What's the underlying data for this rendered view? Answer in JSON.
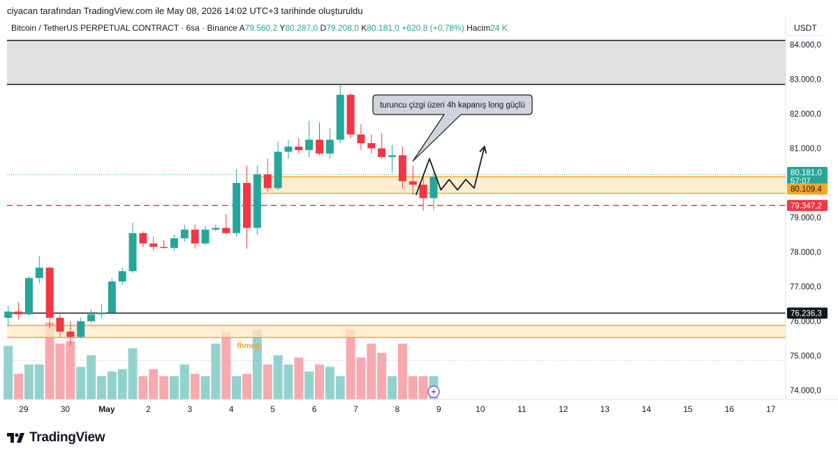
{
  "header": {
    "caption": "ciyacan tarafından TradingView.com ile May 08, 2026 14:02 UTC+3 tarihinde oluşturuldu"
  },
  "footer": {
    "brand": "TradingView"
  },
  "colors": {
    "up": "#26a69a",
    "down": "#f23645",
    "up_volume": "#92d2cc",
    "down_volume": "#f7a9ae",
    "orange": "#f5a623",
    "zone_fill": "#fde8c4",
    "gray_zone": "#e0e0e0"
  },
  "chart_data": {
    "type": "candlestick",
    "legend": {
      "symbol": "Bitcoin / TetherUS PERPETUAL CONTRACT · 6sa · Binance",
      "open_label": "A",
      "open": "79.560,2",
      "high_label": "Y",
      "high": "80.287,0",
      "low_label": "D",
      "low": "79.208,0",
      "close_label": "K",
      "close": "80.181,0",
      "change": "+620,8 (+0,78%)",
      "volume_label": "Hacim",
      "volume": "24 K"
    },
    "currency": "USDT",
    "ylim": [
      73800,
      84200
    ],
    "y_ticks": [
      {
        "value": 74000,
        "label": "74.000,0"
      },
      {
        "value": 75000,
        "label": "75.000,0"
      },
      {
        "value": 76000,
        "label": "76.000,0"
      },
      {
        "value": 77000,
        "label": "77.000,0"
      },
      {
        "value": 78000,
        "label": "78.000,0"
      },
      {
        "value": 79000,
        "label": "79.000,0"
      },
      {
        "value": 80000,
        "label": "80.000,0"
      },
      {
        "value": 81000,
        "label": "81.000,0"
      },
      {
        "value": 82000,
        "label": "82.000,0"
      },
      {
        "value": 83000,
        "label": "83.000,0"
      },
      {
        "value": 84000,
        "label": "84.000,0"
      }
    ],
    "x_ticks": [
      {
        "bar": 1.5,
        "label": "29",
        "bold": false
      },
      {
        "bar": 5.5,
        "label": "30",
        "bold": false
      },
      {
        "bar": 9.5,
        "label": "May",
        "bold": true
      },
      {
        "bar": 13.5,
        "label": "2",
        "bold": false
      },
      {
        "bar": 17.5,
        "label": "3",
        "bold": false
      },
      {
        "bar": 21.5,
        "label": "4",
        "bold": false
      },
      {
        "bar": 25.5,
        "label": "5",
        "bold": false
      },
      {
        "bar": 29.5,
        "label": "6",
        "bold": false
      },
      {
        "bar": 33.5,
        "label": "7",
        "bold": false
      },
      {
        "bar": 37.5,
        "label": "8",
        "bold": false
      },
      {
        "bar": 41.5,
        "label": "9",
        "bold": false
      },
      {
        "bar": 45.5,
        "label": "10",
        "bold": false
      },
      {
        "bar": 49.5,
        "label": "11",
        "bold": false
      },
      {
        "bar": 53.5,
        "label": "12",
        "bold": false
      },
      {
        "bar": 57.5,
        "label": "13",
        "bold": false
      },
      {
        "bar": 61.5,
        "label": "14",
        "bold": false
      },
      {
        "bar": 65.5,
        "label": "15",
        "bold": false
      },
      {
        "bar": 69.5,
        "label": "16",
        "bold": false
      },
      {
        "bar": 73.5,
        "label": "17",
        "bold": false
      }
    ],
    "candles": [
      {
        "o": 76100,
        "h": 76450,
        "l": 75850,
        "c": 76280
      },
      {
        "o": 76280,
        "h": 76550,
        "l": 76050,
        "c": 76200
      },
      {
        "o": 76200,
        "h": 77300,
        "l": 76150,
        "c": 77250
      },
      {
        "o": 77250,
        "h": 77880,
        "l": 77100,
        "c": 77550
      },
      {
        "o": 77550,
        "h": 77550,
        "l": 75800,
        "c": 76100
      },
      {
        "o": 76100,
        "h": 76200,
        "l": 75550,
        "c": 75700
      },
      {
        "o": 75700,
        "h": 76000,
        "l": 75300,
        "c": 75550
      },
      {
        "o": 75550,
        "h": 76100,
        "l": 75500,
        "c": 76000
      },
      {
        "o": 76000,
        "h": 76350,
        "l": 75950,
        "c": 76200
      },
      {
        "o": 76200,
        "h": 76500,
        "l": 76100,
        "c": 76250
      },
      {
        "o": 76250,
        "h": 77250,
        "l": 76200,
        "c": 77150
      },
      {
        "o": 77150,
        "h": 77550,
        "l": 77050,
        "c": 77450
      },
      {
        "o": 77450,
        "h": 78850,
        "l": 77400,
        "c": 78550
      },
      {
        "o": 78550,
        "h": 78600,
        "l": 78150,
        "c": 78250
      },
      {
        "o": 78250,
        "h": 78450,
        "l": 78050,
        "c": 78150
      },
      {
        "o": 78150,
        "h": 78350,
        "l": 78100,
        "c": 78120
      },
      {
        "o": 78120,
        "h": 78500,
        "l": 78050,
        "c": 78400
      },
      {
        "o": 78400,
        "h": 78800,
        "l": 78300,
        "c": 78650
      },
      {
        "o": 78650,
        "h": 78800,
        "l": 78100,
        "c": 78250
      },
      {
        "o": 78250,
        "h": 78750,
        "l": 78200,
        "c": 78650
      },
      {
        "o": 78650,
        "h": 78800,
        "l": 78600,
        "c": 78700
      },
      {
        "o": 78700,
        "h": 79100,
        "l": 78500,
        "c": 78550
      },
      {
        "o": 78550,
        "h": 80400,
        "l": 78450,
        "c": 80000
      },
      {
        "o": 80000,
        "h": 80500,
        "l": 78100,
        "c": 78700
      },
      {
        "o": 78700,
        "h": 80500,
        "l": 78500,
        "c": 80250
      },
      {
        "o": 80250,
        "h": 80700,
        "l": 79750,
        "c": 79850
      },
      {
        "o": 79850,
        "h": 81200,
        "l": 79800,
        "c": 80900
      },
      {
        "o": 80900,
        "h": 81250,
        "l": 80700,
        "c": 81050
      },
      {
        "o": 81050,
        "h": 81300,
        "l": 80850,
        "c": 80950
      },
      {
        "o": 80950,
        "h": 81800,
        "l": 80750,
        "c": 81250
      },
      {
        "o": 81250,
        "h": 81750,
        "l": 80800,
        "c": 80850
      },
      {
        "o": 80850,
        "h": 81600,
        "l": 80700,
        "c": 81250
      },
      {
        "o": 81250,
        "h": 82850,
        "l": 81150,
        "c": 82550
      },
      {
        "o": 82550,
        "h": 82600,
        "l": 81300,
        "c": 81400
      },
      {
        "o": 81400,
        "h": 81700,
        "l": 80950,
        "c": 81150
      },
      {
        "o": 81150,
        "h": 81400,
        "l": 80850,
        "c": 81000
      },
      {
        "o": 81000,
        "h": 81450,
        "l": 80700,
        "c": 80750
      },
      {
        "o": 80750,
        "h": 81100,
        "l": 80300,
        "c": 80800
      },
      {
        "o": 80800,
        "h": 81050,
        "l": 79850,
        "c": 80050
      },
      {
        "o": 80050,
        "h": 80500,
        "l": 79650,
        "c": 79950
      },
      {
        "o": 79950,
        "h": 80200,
        "l": 79200,
        "c": 79560
      },
      {
        "o": 79560,
        "h": 80287,
        "l": 79208,
        "c": 80181
      }
    ],
    "volume": [
      23,
      11,
      15,
      15,
      33,
      24,
      25,
      14,
      19,
      10,
      12,
      13,
      22,
      10,
      13,
      10,
      10,
      15,
      11,
      10,
      24,
      29,
      10,
      11,
      30,
      15,
      19,
      15,
      18,
      12,
      15,
      14,
      10,
      30,
      18,
      24,
      20,
      10,
      24,
      10,
      10,
      10
    ],
    "price_labels": [
      {
        "value": 80181,
        "label": "80.181,0",
        "sublabel": "57:07",
        "color": "#26a69a"
      },
      {
        "value": 80109.4,
        "label": "80.109,4",
        "color": "#f5a623"
      },
      {
        "value": 79347.2,
        "label": "79.347,2",
        "color": "#f23645"
      },
      {
        "value": 76236.3,
        "label": "76.236,3",
        "color": "#131722"
      }
    ],
    "drawings": {
      "gray_zone": [
        82850,
        84000
      ],
      "upper_orange_zone": [
        79700,
        80180
      ],
      "lower_orange_zone": [
        75530,
        75880
      ],
      "black_support": 76236.3,
      "red_dashed": 79347.2,
      "lower_zone_label": "fhmeq",
      "callout": "turuncu çizgi üzeri 4h kapanış long güçlü",
      "path": [
        [
          39.3,
          79650
        ],
        [
          40.6,
          80700
        ],
        [
          41.7,
          79800
        ],
        [
          42.5,
          80100
        ],
        [
          43.3,
          79800
        ],
        [
          44.1,
          80100
        ],
        [
          44.9,
          79850
        ],
        [
          45.9,
          81050
        ]
      ]
    }
  }
}
